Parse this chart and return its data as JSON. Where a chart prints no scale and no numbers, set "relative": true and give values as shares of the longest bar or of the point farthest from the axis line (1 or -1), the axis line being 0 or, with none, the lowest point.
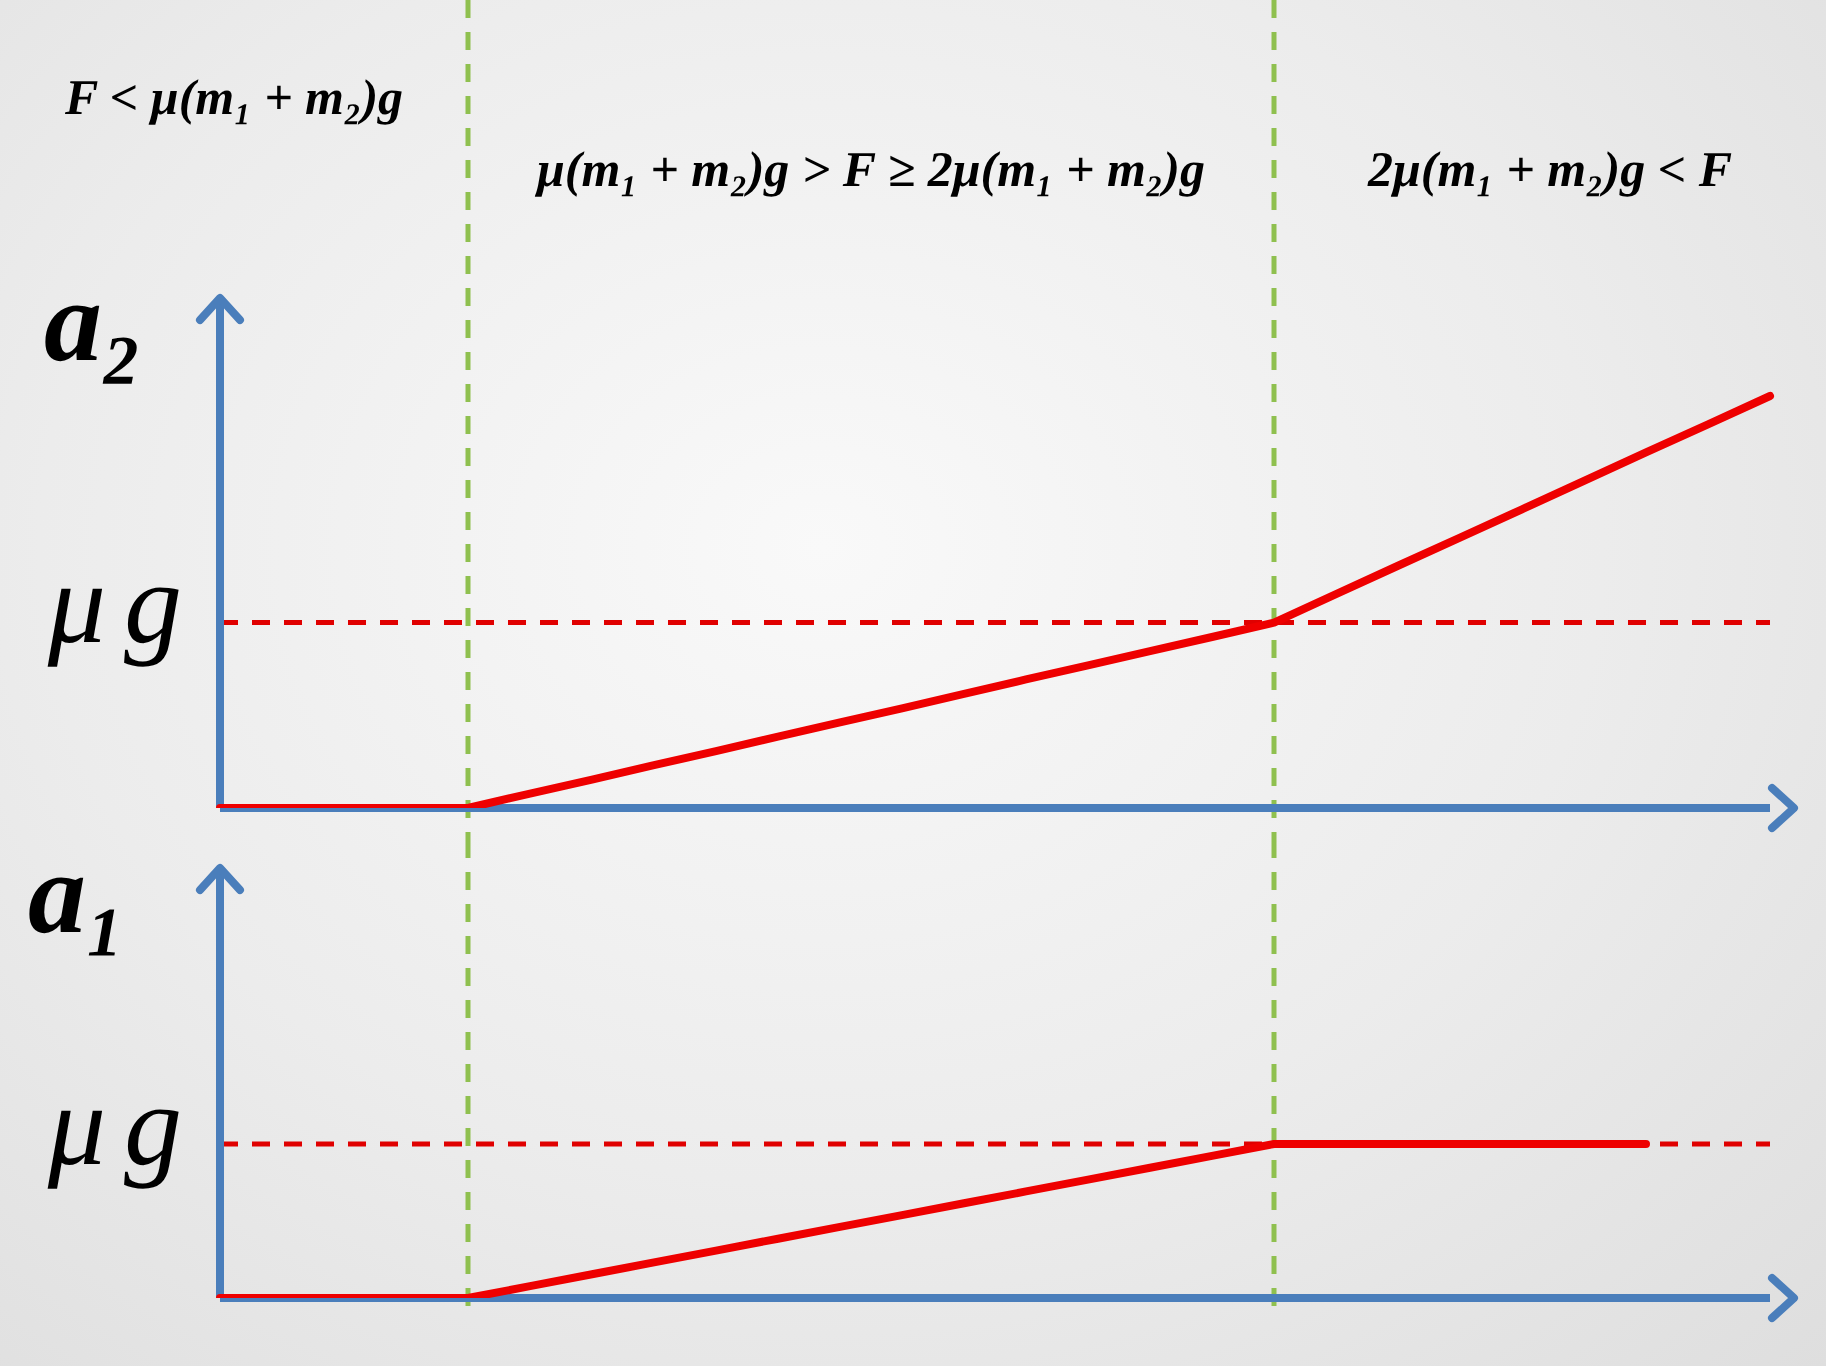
{
  "chart_data": [
    {
      "type": "line",
      "ylabel": "a₂",
      "annotations": [
        "F < μ(m₁ + m₂)g",
        "μ(m₁ + m₂)g > F ≥ 2μ(m₁ + m₂)g",
        "2μ(m₁ + m₂)g < F"
      ],
      "categories": [
        null,
        null,
        null,
        null,
        null,
        null,
        null,
        null,
        null,
        null,
        null,
        null,
        null,
        null,
        null,
        null,
        null,
        null,
        null,
        null,
        null,
        null,
        null,
        null,
        null,
        null
      ],
      "relative": true,
      "series": [
        {
          "color": "#ee0000",
          "values": [
            0,
            0,
            0,
            0,
            0,
            0.035,
            0.069,
            0.104,
            0.138,
            0.173,
            0.208,
            0.242,
            0.277,
            0.312,
            0.346,
            0.381,
            0.415,
            0.45,
            0.519,
            0.588,
            0.656,
            0.725,
            0.794,
            0.863,
            0.931,
            1
          ]
        }
      ],
      "ref_lines": [
        {
          "axis": "y",
          "value": 0.45,
          "label": "μg",
          "color": "#e00000",
          "line_style": "dashed"
        }
      ],
      "marker": "none",
      "line_style": "solid"
    },
    {
      "type": "line",
      "ylabel": "a₁",
      "categories": [
        null,
        null,
        null,
        null,
        null,
        null,
        null,
        null,
        null,
        null,
        null,
        null,
        null,
        null,
        null,
        null,
        null,
        null,
        null,
        null,
        null,
        null,
        null,
        null,
        null,
        null
      ],
      "relative": true,
      "series": [
        {
          "color": "#ee0000",
          "values": [
            0,
            0,
            0,
            0,
            0,
            0.077,
            0.154,
            0.231,
            0.308,
            0.385,
            0.462,
            0.538,
            0.615,
            0.692,
            0.769,
            0.846,
            0.923,
            1,
            1,
            1,
            1,
            1,
            1,
            1,
            null,
            null
          ]
        }
      ],
      "ref_lines": [
        {
          "axis": "y",
          "value": 1,
          "label": "μg",
          "color": "#e00000",
          "line_style": "dashed"
        }
      ],
      "marker": "none",
      "line_style": "solid"
    }
  ]
}
